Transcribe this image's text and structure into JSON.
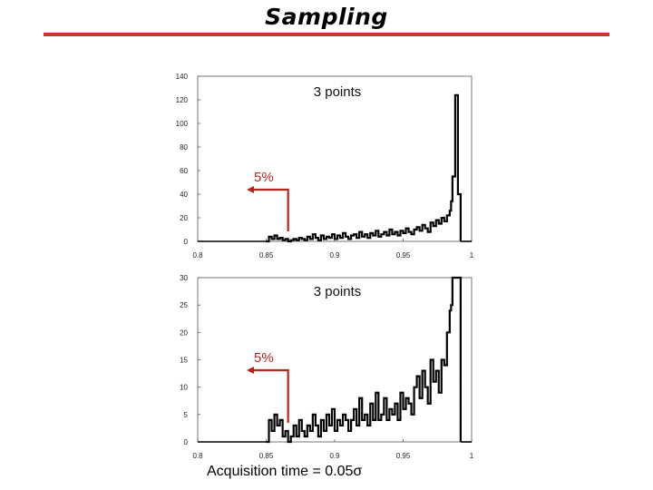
{
  "slide": {
    "title": "Sampling",
    "caption_text": "Acquisition time = 0.05",
    "caption_symbol": "σ"
  },
  "colors": {
    "title_rule": "#c0392b",
    "series_line": "#000000",
    "arrow": "#b3261e",
    "axis": "#555555"
  },
  "chart_data": [
    {
      "type": "line",
      "title": "",
      "annotation_label": "3 points",
      "arrow_label": "5%",
      "arrow_x": 0.866,
      "xlim": [
        0.8,
        1.0
      ],
      "ylim": [
        0,
        140
      ],
      "xticks": [
        "0.8",
        "0.85",
        "0.9",
        "0.95",
        "1"
      ],
      "yticks": [
        "0",
        "20",
        "40",
        "60",
        "80",
        "100",
        "120",
        "140"
      ],
      "grid": false,
      "series": [
        {
          "x": [
            0.85,
            0.852,
            0.854,
            0.856,
            0.858,
            0.86,
            0.862,
            0.864,
            0.866,
            0.868,
            0.87,
            0.872,
            0.874,
            0.876,
            0.878,
            0.88,
            0.882,
            0.884,
            0.886,
            0.888,
            0.89,
            0.892,
            0.894,
            0.896,
            0.898,
            0.9,
            0.902,
            0.904,
            0.906,
            0.908,
            0.91,
            0.912,
            0.914,
            0.916,
            0.918,
            0.92,
            0.922,
            0.924,
            0.926,
            0.928,
            0.93,
            0.932,
            0.934,
            0.936,
            0.938,
            0.94,
            0.942,
            0.944,
            0.946,
            0.948,
            0.95,
            0.952,
            0.954,
            0.956,
            0.958,
            0.96,
            0.962,
            0.964,
            0.966,
            0.968,
            0.97,
            0.972,
            0.974,
            0.976,
            0.978,
            0.98,
            0.982,
            0.984,
            0.985,
            0.986,
            0.988,
            0.99,
            0.992
          ],
          "y": [
            0,
            4,
            2,
            5,
            2,
            3,
            1,
            2,
            0,
            1,
            2,
            1,
            3,
            2,
            1,
            4,
            2,
            6,
            3,
            1,
            5,
            2,
            4,
            3,
            6,
            2,
            5,
            3,
            7,
            4,
            2,
            5,
            6,
            3,
            8,
            4,
            6,
            3,
            7,
            5,
            9,
            4,
            6,
            8,
            5,
            10,
            6,
            8,
            5,
            9,
            7,
            11,
            8,
            6,
            10,
            12,
            9,
            14,
            11,
            8,
            16,
            13,
            18,
            15,
            20,
            17,
            22,
            26,
            34,
            55,
            124,
            40,
            0
          ]
        }
      ]
    },
    {
      "type": "line",
      "title": "",
      "annotation_label": "3 points",
      "arrow_label": "5%",
      "arrow_x": 0.866,
      "xlim": [
        0.8,
        1.0
      ],
      "ylim": [
        0,
        30
      ],
      "xticks": [
        "0.8",
        "0.85",
        "0.9",
        "0.95",
        "1"
      ],
      "yticks": [
        "0",
        "5",
        "10",
        "15",
        "20",
        "25",
        "30"
      ],
      "grid": false,
      "series": [
        {
          "x": [
            0.85,
            0.852,
            0.854,
            0.856,
            0.858,
            0.86,
            0.862,
            0.864,
            0.866,
            0.868,
            0.87,
            0.872,
            0.874,
            0.876,
            0.878,
            0.88,
            0.882,
            0.884,
            0.886,
            0.888,
            0.89,
            0.892,
            0.894,
            0.896,
            0.898,
            0.9,
            0.902,
            0.904,
            0.906,
            0.908,
            0.91,
            0.912,
            0.914,
            0.916,
            0.918,
            0.92,
            0.922,
            0.924,
            0.926,
            0.928,
            0.93,
            0.932,
            0.934,
            0.936,
            0.938,
            0.94,
            0.942,
            0.944,
            0.946,
            0.948,
            0.95,
            0.952,
            0.954,
            0.956,
            0.958,
            0.96,
            0.962,
            0.964,
            0.966,
            0.968,
            0.97,
            0.972,
            0.974,
            0.976,
            0.978,
            0.98,
            0.982,
            0.984,
            0.985,
            0.986,
            0.988,
            0.99,
            0.992
          ],
          "y": [
            0,
            4,
            2,
            5,
            3,
            4,
            1,
            2,
            0,
            1,
            3,
            1,
            4,
            2,
            1,
            3,
            2,
            5,
            3,
            1,
            4,
            2,
            5,
            3,
            6,
            2,
            4,
            3,
            5,
            4,
            2,
            4,
            6,
            3,
            8,
            4,
            5,
            3,
            7,
            4,
            9,
            4,
            5,
            8,
            4,
            6,
            5,
            7,
            4,
            9,
            6,
            8,
            7,
            5,
            10,
            12,
            8,
            13,
            10,
            7,
            15,
            11,
            13,
            9,
            15,
            14,
            20,
            24,
            25,
            30,
            30,
            30,
            0
          ]
        }
      ]
    }
  ]
}
